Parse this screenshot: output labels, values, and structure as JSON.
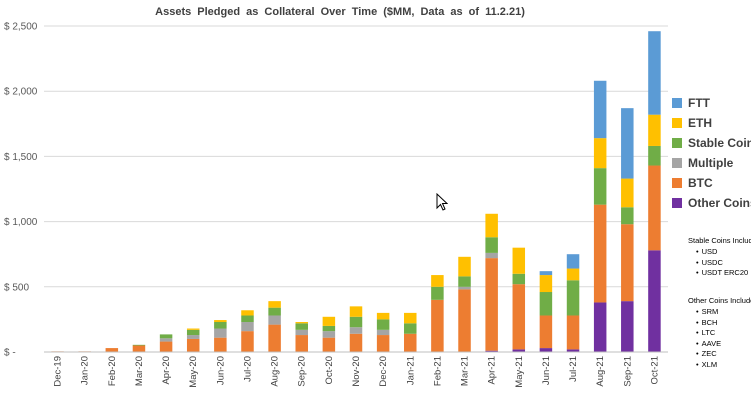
{
  "chart_data": {
    "type": "bar",
    "stacked": true,
    "title": "Assets Pledged as Collateral Over Time ($MM, Data as of 11.2.21)",
    "xlabel": "",
    "ylabel": "",
    "ylim": [
      0,
      2500
    ],
    "yticks": [
      0,
      500,
      1000,
      1500,
      2000,
      2500
    ],
    "ytick_labels": [
      "$ -",
      "$ 500",
      "$ 1,000",
      "$ 1,500",
      "$ 2,000",
      "$ 2,500"
    ],
    "grid": true,
    "legend_position": "right",
    "categories": [
      "Dec-19",
      "Jan-20",
      "Feb-20",
      "Mar-20",
      "Apr-20",
      "May-20",
      "Jun-20",
      "Jul-20",
      "Aug-20",
      "Sep-20",
      "Oct-20",
      "Nov-20",
      "Dec-20",
      "Jan-21",
      "Feb-21",
      "Mar-21",
      "Apr-21",
      "May-21",
      "Jun-21",
      "Jul-21",
      "Aug-21",
      "Sep-21",
      "Oct-21"
    ],
    "series": [
      {
        "name": "Other Coins",
        "color": "#7030a0",
        "values": [
          0,
          0,
          0,
          0,
          0,
          0,
          0,
          0,
          0,
          0,
          0,
          0,
          0,
          0,
          0,
          0,
          10,
          20,
          30,
          20,
          380,
          390,
          780
        ]
      },
      {
        "name": "BTC",
        "color": "#ed7d31",
        "values": [
          5,
          5,
          30,
          50,
          80,
          100,
          110,
          160,
          210,
          130,
          110,
          140,
          130,
          140,
          400,
          480,
          710,
          500,
          250,
          260,
          750,
          590,
          650
        ]
      },
      {
        "name": "Multiple",
        "color": "#a5a5a5",
        "values": [
          0,
          0,
          0,
          0,
          25,
          30,
          70,
          70,
          70,
          40,
          50,
          50,
          40,
          0,
          0,
          20,
          40,
          0,
          0,
          0,
          0,
          0,
          0
        ]
      },
      {
        "name": "Stable Coins",
        "color": "#70ad47",
        "values": [
          0,
          0,
          0,
          5,
          30,
          40,
          50,
          50,
          60,
          50,
          40,
          80,
          80,
          80,
          100,
          80,
          120,
          80,
          180,
          270,
          280,
          130,
          150
        ]
      },
      {
        "name": "ETH",
        "color": "#ffc000",
        "values": [
          0,
          0,
          0,
          0,
          0,
          10,
          15,
          40,
          50,
          10,
          70,
          80,
          50,
          80,
          90,
          150,
          180,
          200,
          130,
          90,
          230,
          220,
          240
        ]
      },
      {
        "name": "FTT",
        "color": "#5b9bd5",
        "values": [
          0,
          0,
          0,
          0,
          0,
          0,
          0,
          0,
          0,
          0,
          0,
          0,
          0,
          0,
          0,
          0,
          0,
          0,
          30,
          110,
          440,
          540,
          640
        ]
      }
    ]
  },
  "legend": [
    {
      "label": "FTT",
      "color": "#5b9bd5"
    },
    {
      "label": "ETH",
      "color": "#ffc000"
    },
    {
      "label": "Stable Coins",
      "color": "#70ad47"
    },
    {
      "label": "Multiple",
      "color": "#a5a5a5"
    },
    {
      "label": "BTC",
      "color": "#ed7d31"
    },
    {
      "label": "Other Coins",
      "color": "#7030a0"
    }
  ],
  "notes": {
    "stable_title": "Stable Coins Include:",
    "stable_items": [
      "USD",
      "USDC",
      "USDT ERC20"
    ],
    "other_title": "Other Coins Include:",
    "other_items": [
      "SRM",
      "BCH",
      "LTC",
      "AAVE",
      "ZEC",
      "XLM"
    ]
  }
}
